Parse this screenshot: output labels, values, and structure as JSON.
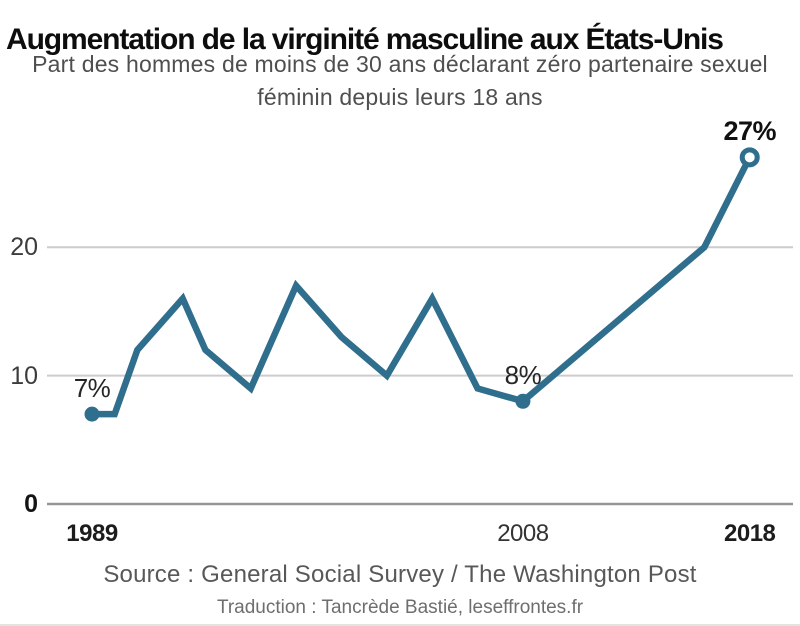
{
  "title": "Augmentation de la virginité masculine aux États-Unis",
  "subtitle": {
    "line1": "Part des hommes de moins de 30 ans déclarant zéro partenaire sexuel",
    "line2": "féminin depuis leurs 18 ans"
  },
  "source": "Source : General Social Survey / The Washington Post",
  "credit": "Traduction : Tancrède Bastié, leseffrontes.fr",
  "colors": {
    "line": "#2f6e8d",
    "grid": "#cccccc",
    "axis": "#969696",
    "title_text": "#0d0d0d",
    "muted_text": "#4f4f4f"
  },
  "chart_data": {
    "type": "line",
    "x": [
      1989,
      1990,
      1991,
      1993,
      1994,
      1996,
      1998,
      2000,
      2002,
      2004,
      2006,
      2008,
      2016,
      2018
    ],
    "values": [
      7,
      7,
      12,
      16,
      12,
      9,
      17,
      13,
      10,
      16,
      9,
      8,
      20,
      27
    ],
    "unit": "%",
    "xlabel": "",
    "ylabel": "",
    "ylim": [
      0,
      31
    ],
    "xlim": [
      1987,
      2020
    ],
    "grid": "horizontal",
    "legend": "none",
    "yticks": [
      {
        "value": 0,
        "label": "0",
        "emphasis": true
      },
      {
        "value": 10,
        "label": "10",
        "emphasis": false
      },
      {
        "value": 20,
        "label": "20",
        "emphasis": false
      }
    ],
    "xticks": [
      {
        "year": 1989,
        "label": "1989",
        "bold": true
      },
      {
        "year": 2008,
        "label": "2008",
        "bold": false
      },
      {
        "year": 2018,
        "label": "2018",
        "bold": true
      }
    ],
    "annotations": [
      {
        "year": 1989,
        "value": 7,
        "label": "7%",
        "bold": false,
        "marker": "filled"
      },
      {
        "year": 2008,
        "value": 8,
        "label": "8%",
        "bold": false,
        "marker": "filled"
      },
      {
        "year": 2018,
        "value": 27,
        "label": "27%",
        "bold": true,
        "marker": "open"
      }
    ]
  }
}
